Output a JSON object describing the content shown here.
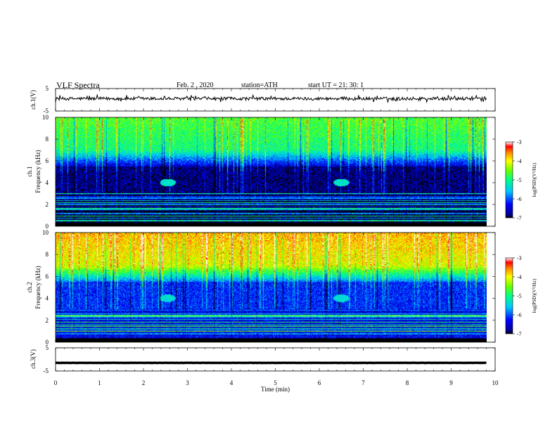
{
  "header": {
    "title": "VLF  Spectra",
    "date": "Feb. 2  , 2020",
    "station": "station=ATH",
    "start": "start  UT  =    21: 30: 1"
  },
  "chart_data": [
    {
      "type": "line",
      "panel": "ch1-waveform",
      "ylabel": "ch.1(V)",
      "ylim": [
        -5,
        5
      ],
      "y_ticks": [
        "5",
        "-5"
      ],
      "x_range_min": [
        0,
        9.8
      ],
      "color": "#000000",
      "series": [
        {
          "description": "noisy waveform centered near 0.5 V with amplitude about ±1 V",
          "mean": 0.5,
          "amplitude": 1.0
        }
      ]
    },
    {
      "type": "heatmap",
      "panel": "ch1-spectrogram",
      "ylabel_line1": "ch.1",
      "ylabel_line2": "Frequency (kHz)",
      "ylim": [
        0,
        10
      ],
      "y_ticks": [
        "0",
        "2",
        "4",
        "6",
        "8",
        "10"
      ],
      "x_range_min": [
        0,
        9.8
      ],
      "colorbar": {
        "label": "log(PSD)(V²/Hz)",
        "range": [
          -7,
          -3
        ],
        "ticks": [
          "-3",
          "-4",
          "-5",
          "-6",
          "-7"
        ]
      },
      "features": [
        {
          "kind": "quiet-band",
          "freq_khz": [
            3.0,
            5.5
          ],
          "log_psd": -6.8
        },
        {
          "kind": "blob",
          "time_min": 2.55,
          "freq_khz": 4.0,
          "log_psd": -5.3
        },
        {
          "kind": "blob",
          "time_min": 6.5,
          "freq_khz": 4.0,
          "log_psd": -5.3
        }
      ],
      "high_freq_level": -5.0
    },
    {
      "type": "heatmap",
      "panel": "ch2-spectrogram",
      "ylabel_line1": "ch.2",
      "ylabel_line2": "Frequency (kHz)",
      "ylim": [
        0,
        10
      ],
      "y_ticks": [
        "0",
        "2",
        "4",
        "6",
        "8",
        "10"
      ],
      "x_range_min": [
        0,
        9.8
      ],
      "colorbar": {
        "label": "log(PSD)(V²/Hz)",
        "range": [
          -7,
          -3
        ],
        "ticks": [
          "-3",
          "-4",
          "-5",
          "-6",
          "-7"
        ]
      },
      "features": [
        {
          "kind": "quiet-band",
          "freq_khz": [
            3.0,
            5.5
          ],
          "log_psd": -6.2
        },
        {
          "kind": "blob",
          "time_min": 2.55,
          "freq_khz": 4.0,
          "log_psd": -5.4
        },
        {
          "kind": "blob",
          "time_min": 6.5,
          "freq_khz": 4.0,
          "log_psd": -5.4
        }
      ],
      "high_freq_level": -4.1
    },
    {
      "type": "line",
      "panel": "ch3-waveform",
      "ylabel": "ch.3(V)",
      "ylim": [
        -5,
        5
      ],
      "y_ticks": [
        "5",
        "-5"
      ],
      "x_range_min": [
        0,
        9.8
      ],
      "color": "#000000",
      "series": [
        {
          "description": "flat line at about -1.5 V",
          "mean": -1.5,
          "amplitude": 0.05
        }
      ]
    }
  ],
  "xaxis": {
    "label": "Time  (min)",
    "ticks": [
      "0",
      "1",
      "2",
      "3",
      "4",
      "5",
      "6",
      "7",
      "8",
      "9",
      "10"
    ],
    "range": [
      0,
      10
    ]
  }
}
